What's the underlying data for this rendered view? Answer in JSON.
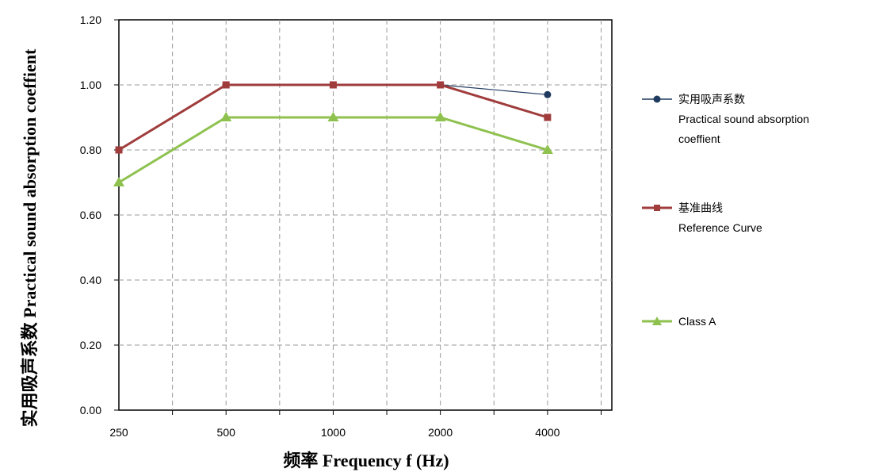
{
  "chart_data": {
    "type": "line",
    "categories": [
      "250",
      "500",
      "1000",
      "2000",
      "4000"
    ],
    "xlabel": "频率 Frequency  f (Hz)",
    "ylabel": "实用吸声系数 Practical sound absorption coeffient",
    "ylim": [
      0,
      1.2
    ],
    "ytick_labels": [
      "0.00",
      "0.20",
      "0.40",
      "0.60",
      "0.80",
      "1.00",
      "1.20"
    ],
    "grid": true,
    "legend_position": "right",
    "series": [
      {
        "name_line1": "实用吸声系数",
        "name_line2": "Practical sound absorption",
        "name_line3": "coeffient",
        "values": [
          0.8,
          1.0,
          1.0,
          1.0,
          0.97
        ],
        "color": "#1f3a5f",
        "marker": "circle"
      },
      {
        "name_line1": "基准曲线",
        "name_line2": "Reference Curve",
        "values": [
          0.8,
          1.0,
          1.0,
          1.0,
          0.9
        ],
        "color": "#a03c3c",
        "marker": "square"
      },
      {
        "name_line1": "Class A",
        "values": [
          0.7,
          0.9,
          0.9,
          0.9,
          0.8
        ],
        "color": "#8ec14e",
        "marker": "triangle"
      }
    ]
  }
}
